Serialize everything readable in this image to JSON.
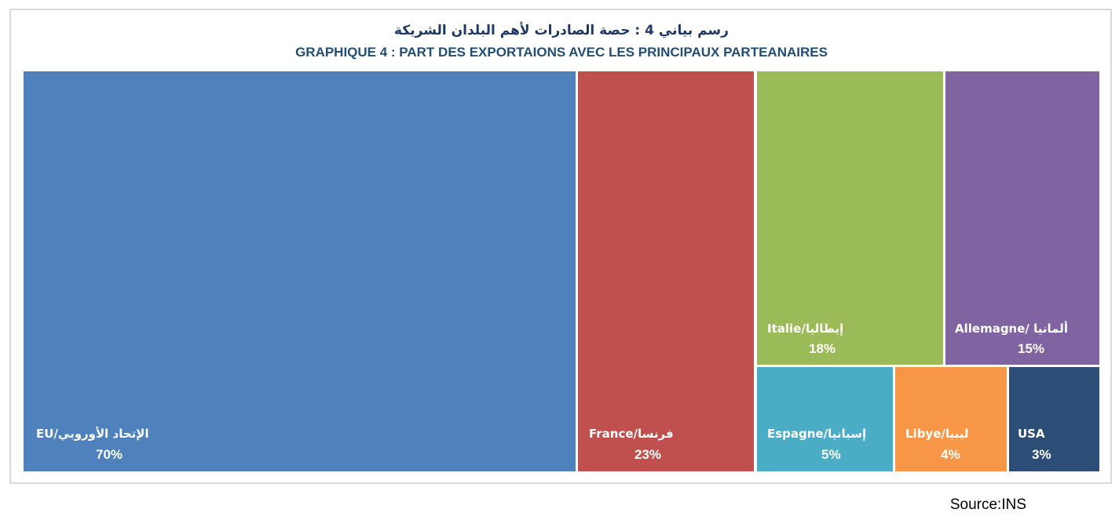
{
  "title_ar": "رسم بياني 4 : حصة الصادرات لأهم البلدان الشريكة",
  "title_fr": "GRAPHIQUE 4 : PART DES EXPORTAIONS AVEC LES PRINCIPAUX PARTEANAIRES",
  "source": "Source:INS",
  "chart_data": {
    "type": "treemap",
    "title": "GRAPHIQUE 4 : PART DES EXPORTAIONS AVEC LES PRINCIPAUX PARTEANAIRES",
    "items": [
      {
        "name": "EU/الإتحاد الأوروبي",
        "value": 70,
        "label": "70%",
        "color": "#4f81bd"
      },
      {
        "name": "France/فرنسا",
        "value": 23,
        "label": "23%",
        "color": "#c0504d"
      },
      {
        "name": "Italie/إيطاليا",
        "value": 18,
        "label": "18%",
        "color": "#9bbb59"
      },
      {
        "name": "Allemagne/ ألمانيا",
        "value": 15,
        "label": "15%",
        "color": "#8064a2"
      },
      {
        "name": "Espagne/إسبانيا",
        "value": 5,
        "label": "5%",
        "color": "#4bacc6"
      },
      {
        "name": "Libye/ليبيا",
        "value": 4,
        "label": "4%",
        "color": "#f79646"
      },
      {
        "name": "USA",
        "value": 3,
        "label": "3%",
        "color": "#2c4d75"
      }
    ]
  }
}
